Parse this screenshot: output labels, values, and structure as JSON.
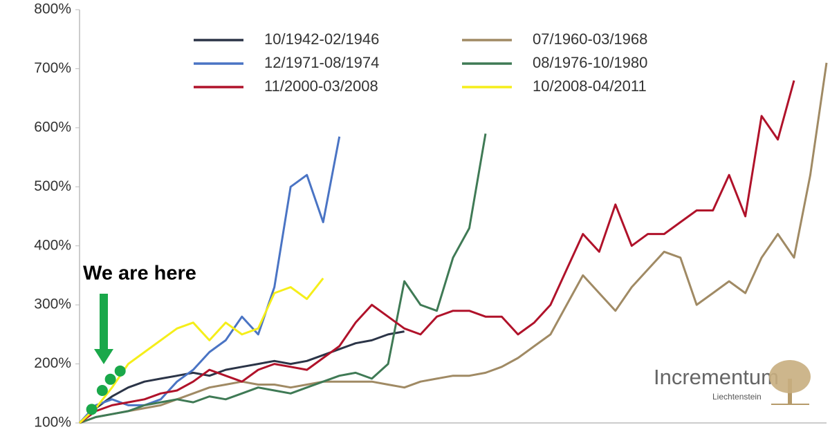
{
  "chart_data": {
    "type": "line",
    "x": [
      0,
      2,
      4,
      6,
      8,
      10,
      12,
      14,
      16,
      18,
      20,
      22,
      24,
      26,
      28,
      30,
      32,
      34,
      36,
      38,
      40,
      42,
      44,
      46,
      48,
      50,
      52,
      54,
      56,
      58,
      60,
      62,
      64,
      66,
      68,
      70,
      72,
      74,
      76,
      78,
      80,
      82,
      84,
      86,
      88,
      90,
      92
    ],
    "xlim": [
      0,
      92
    ],
    "ylim": [
      100,
      800
    ],
    "yticks": [
      {
        "value": 100,
        "label": "100%"
      },
      {
        "value": 200,
        "label": "200%"
      },
      {
        "value": 300,
        "label": "300%"
      },
      {
        "value": 400,
        "label": "400%"
      },
      {
        "value": 500,
        "label": "500%"
      },
      {
        "value": 600,
        "label": "600%"
      },
      {
        "value": 700,
        "label": "700%"
      },
      {
        "value": 800,
        "label": "800%"
      }
    ],
    "grid": false,
    "legend": "top",
    "series": [
      {
        "name": "10/1942-02/1946",
        "color": "#2b3447",
        "values": [
          100,
          125,
          145,
          160,
          170,
          175,
          180,
          185,
          180,
          190,
          195,
          200,
          205,
          200,
          205,
          215,
          225,
          235,
          240,
          250,
          255,
          null,
          null,
          null,
          null,
          null,
          null,
          null,
          null,
          null,
          null,
          null,
          null,
          null,
          null,
          null,
          null,
          null,
          null,
          null,
          null,
          null,
          null,
          null,
          null,
          null,
          null
        ]
      },
      {
        "name": "07/1960-03/1968",
        "color": "#a08a64",
        "values": [
          100,
          110,
          115,
          120,
          125,
          130,
          140,
          150,
          160,
          165,
          170,
          165,
          165,
          160,
          165,
          170,
          170,
          170,
          170,
          165,
          160,
          170,
          175,
          180,
          180,
          185,
          195,
          210,
          230,
          250,
          300,
          350,
          320,
          290,
          330,
          360,
          390,
          380,
          300,
          320,
          340,
          320,
          380,
          420,
          380,
          520,
          710
        ]
      },
      {
        "name": "12/1971-08/1974",
        "color": "#4a74c4",
        "values": [
          100,
          130,
          140,
          130,
          130,
          140,
          170,
          190,
          220,
          240,
          280,
          250,
          330,
          500,
          520,
          440,
          585,
          null,
          null,
          null,
          null,
          null,
          null,
          null,
          null,
          null,
          null,
          null,
          null,
          null,
          null,
          null,
          null,
          null,
          null,
          null,
          null,
          null,
          null,
          null,
          null,
          null,
          null,
          null,
          null,
          null,
          null
        ]
      },
      {
        "name": "08/1976-10/1980",
        "color": "#3f7a55",
        "values": [
          100,
          110,
          115,
          120,
          130,
          135,
          140,
          135,
          145,
          140,
          150,
          160,
          155,
          150,
          160,
          170,
          180,
          185,
          175,
          200,
          340,
          300,
          290,
          380,
          430,
          590,
          null,
          null,
          null,
          null,
          null,
          null,
          null,
          null,
          null,
          null,
          null,
          null,
          null,
          null,
          null,
          null,
          null,
          null,
          null,
          null,
          null
        ]
      },
      {
        "name": "11/2000-03/2008",
        "color": "#b0122a",
        "values": [
          100,
          120,
          130,
          135,
          140,
          150,
          155,
          170,
          190,
          180,
          170,
          190,
          200,
          195,
          190,
          210,
          230,
          270,
          300,
          280,
          260,
          250,
          280,
          290,
          290,
          280,
          280,
          250,
          270,
          300,
          360,
          420,
          390,
          470,
          400,
          420,
          420,
          440,
          460,
          460,
          520,
          450,
          620,
          580,
          680,
          null,
          null
        ]
      },
      {
        "name": "10/2008-04/2011",
        "color": "#f5ee1a",
        "values": [
          100,
          125,
          160,
          200,
          220,
          240,
          260,
          270,
          240,
          270,
          250,
          260,
          320,
          330,
          310,
          345,
          null,
          null,
          null,
          null,
          null,
          null,
          null,
          null,
          null,
          null,
          null,
          null,
          null,
          null,
          null,
          null,
          null,
          null,
          null,
          null,
          null,
          null,
          null,
          null,
          null,
          null,
          null,
          null,
          null,
          null,
          null
        ]
      }
    ],
    "annotation": {
      "text": "We are here",
      "color": "#1aa84a",
      "x": [
        1.5,
        2.8,
        3.8,
        5.0
      ],
      "values": [
        123,
        155,
        174,
        188
      ]
    }
  },
  "logo": {
    "name": "Incrementum",
    "place": "Liechtenstein"
  }
}
